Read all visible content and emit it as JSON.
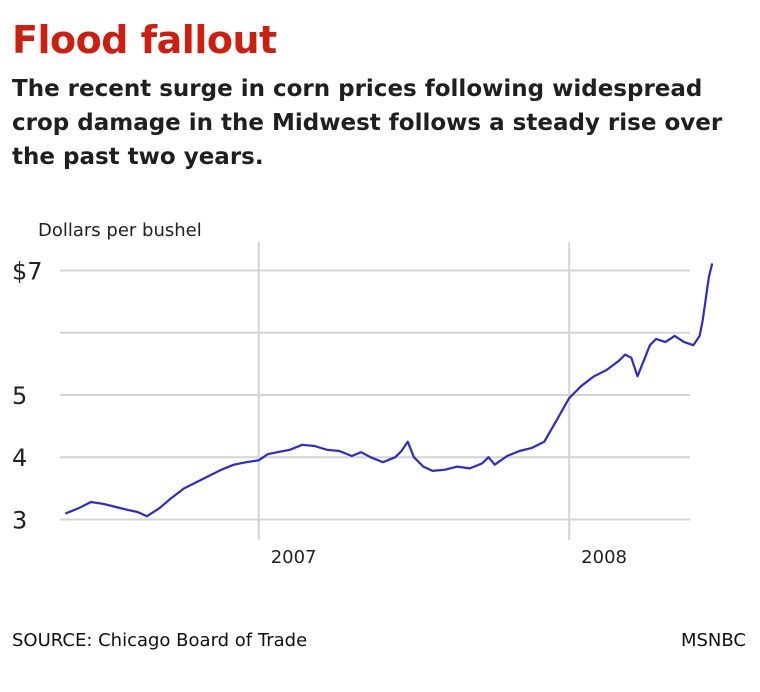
{
  "header": {
    "title": "Flood fallout",
    "subtitle": "The recent surge in corn prices following widespread crop damage in the Midwest follows a steady rise over the past two years."
  },
  "footer": {
    "source": "SOURCE: Chicago Board of Trade",
    "credit": "MSNBC"
  },
  "colors": {
    "title": "#cc1f10",
    "line": "#2b2bd0",
    "grid": "#d4d4d4"
  },
  "chart_data": {
    "type": "line",
    "ylabel": "Dollars per bushel",
    "ylim": [
      2.75,
      7.25
    ],
    "yticks": [
      {
        "value": 7,
        "label": "$7"
      },
      {
        "value": 6,
        "label": ""
      },
      {
        "value": 5,
        "label": "5"
      },
      {
        "value": 4,
        "label": "4"
      },
      {
        "value": 3,
        "label": "3"
      }
    ],
    "xlim": [
      2006.36,
      2008.46
    ],
    "xticks": [
      {
        "value": 2007.0,
        "label": "2007"
      },
      {
        "value": 2008.0,
        "label": "2008"
      }
    ],
    "grid": true,
    "series": [
      {
        "x": [
          2006.38,
          2006.42,
          2006.46,
          2006.5,
          2006.54,
          2006.58,
          2006.61,
          2006.64,
          2006.68,
          2006.72,
          2006.76,
          2006.8,
          2006.84,
          2006.88,
          2006.92,
          2006.96,
          2007.0,
          2007.03,
          2007.06,
          2007.1,
          2007.14,
          2007.18,
          2007.22,
          2007.26,
          2007.3,
          2007.33,
          2007.36,
          2007.4,
          2007.44,
          2007.46,
          2007.48,
          2007.5,
          2007.53,
          2007.56,
          2007.6,
          2007.64,
          2007.68,
          2007.72,
          2007.74,
          2007.76,
          2007.8,
          2007.84,
          2007.88,
          2007.92,
          2007.96,
          2008.0,
          2008.04,
          2008.08,
          2008.12,
          2008.16,
          2008.18,
          2008.2,
          2008.22,
          2008.24,
          2008.26,
          2008.28,
          2008.31,
          2008.34,
          2008.37,
          2008.4,
          2008.42,
          2008.43,
          2008.45,
          2008.46
        ],
        "values": [
          3.1,
          3.18,
          3.28,
          3.25,
          3.2,
          3.15,
          3.12,
          3.05,
          3.18,
          3.35,
          3.5,
          3.6,
          3.7,
          3.8,
          3.88,
          3.92,
          3.95,
          4.05,
          4.08,
          4.12,
          4.2,
          4.18,
          4.12,
          4.1,
          4.02,
          4.08,
          4.0,
          3.92,
          4.0,
          4.1,
          4.25,
          4.0,
          3.85,
          3.78,
          3.8,
          3.85,
          3.82,
          3.9,
          4.0,
          3.88,
          4.02,
          4.1,
          4.15,
          4.25,
          4.6,
          4.95,
          5.15,
          5.3,
          5.4,
          5.55,
          5.65,
          5.6,
          5.3,
          5.55,
          5.8,
          5.9,
          5.85,
          5.95,
          5.85,
          5.8,
          5.95,
          6.2,
          6.9,
          7.1
        ]
      }
    ]
  }
}
